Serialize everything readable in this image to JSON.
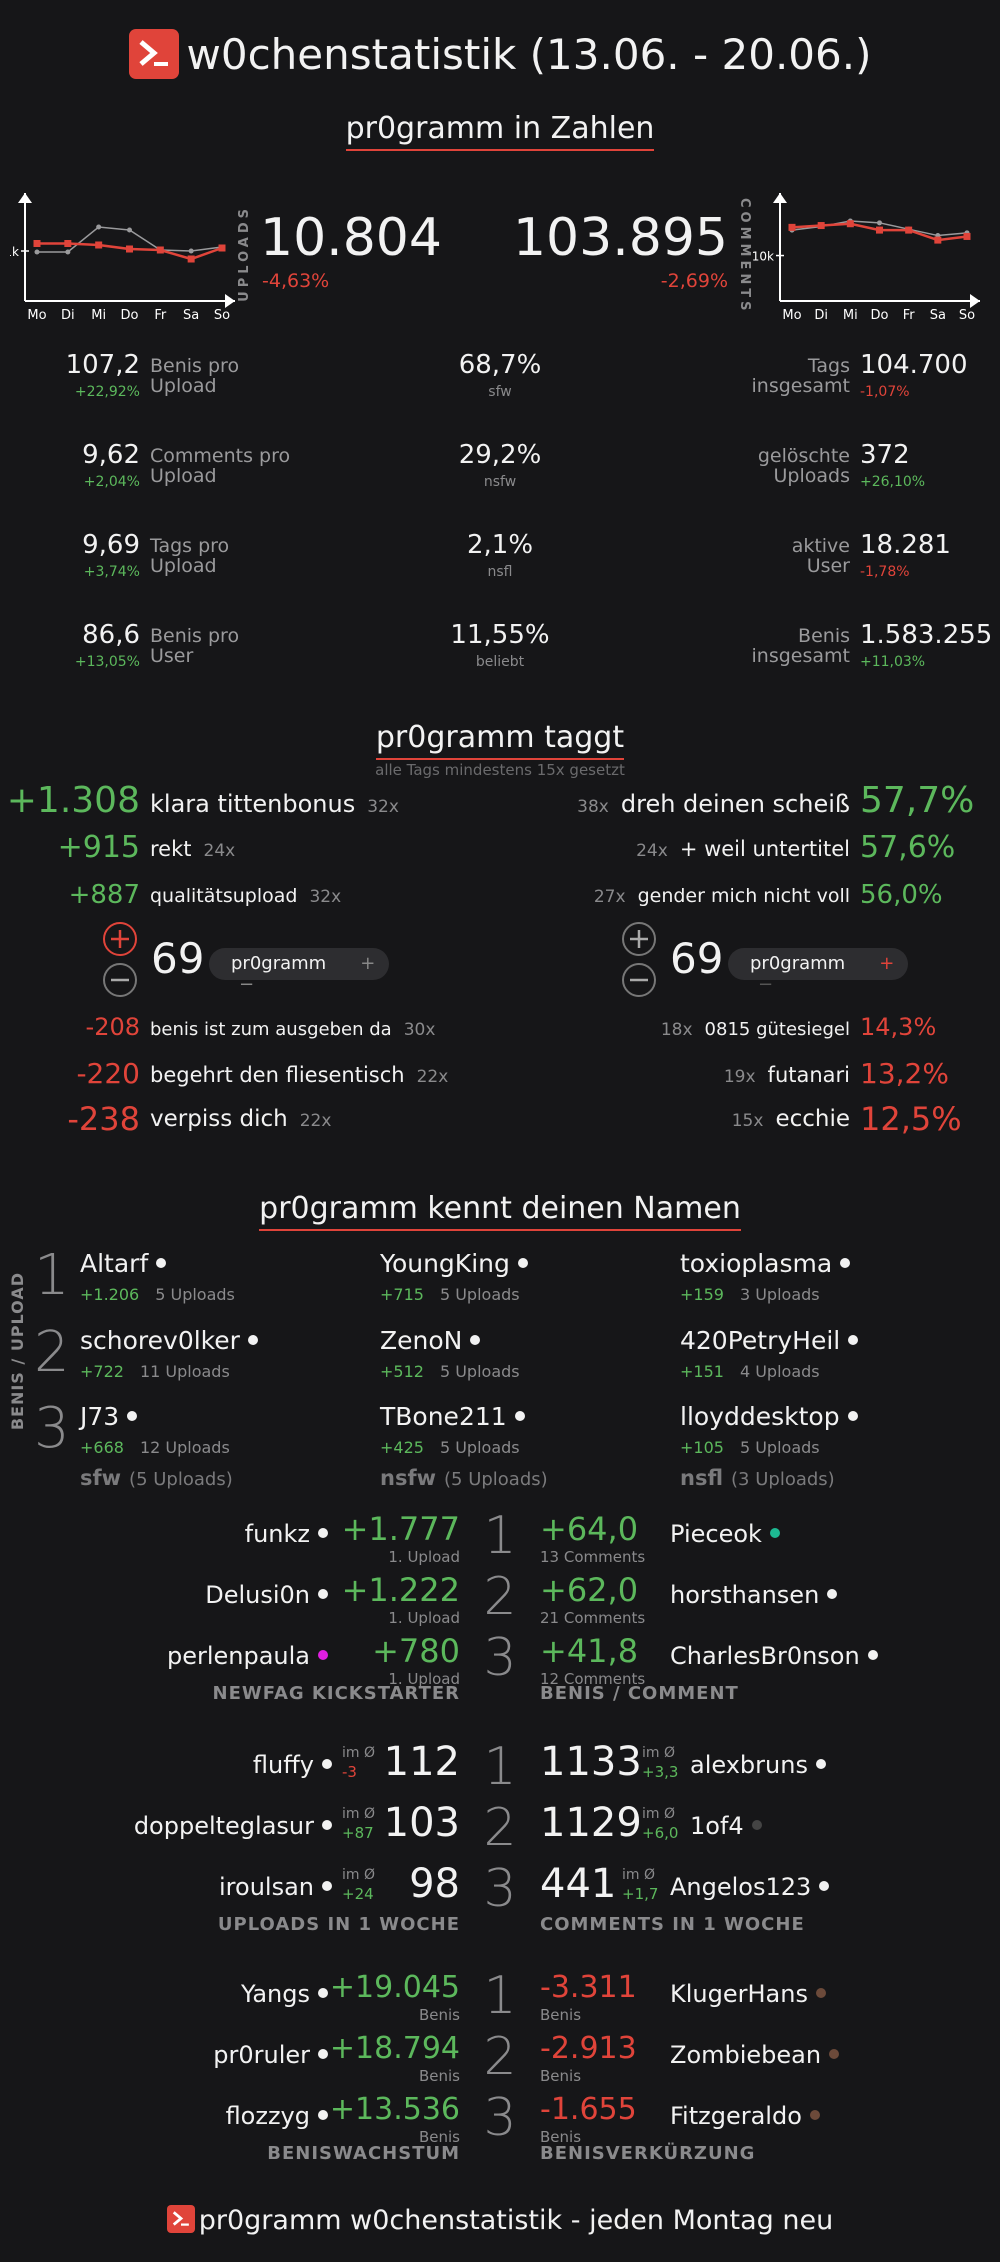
{
  "header": {
    "title": "w0chenstatistik (13.06. - 20.06.)",
    "subtitle": "pr0gramm in Zahlen",
    "logo_icon": "pr0gramm-logo-icon",
    "brand_color": "#e0443a"
  },
  "overview": {
    "uploads": {
      "label": "UPLOADS",
      "value": "10.804",
      "change": "-4,63%"
    },
    "comments": {
      "label": "COMMENTS",
      "value": "103.895",
      "change": "-2,69%"
    },
    "chart_left": {
      "days": [
        "Mo",
        "Di",
        "Mi",
        "Do",
        "Fr",
        "Sa",
        "So"
      ],
      "ytick": "1k",
      "series_this": [
        1.15,
        1.15,
        1.12,
        1.04,
        1.02,
        0.84,
        1.06
      ],
      "series_last": [
        0.98,
        0.98,
        1.48,
        1.42,
        1.02,
        1.0,
        1.08
      ]
    },
    "chart_right": {
      "days": [
        "Mo",
        "Di",
        "Mi",
        "Do",
        "Fr",
        "Sa",
        "So"
      ],
      "ytick": "10k",
      "series_this": [
        16.2,
        16.6,
        17.0,
        15.6,
        15.6,
        13.4,
        14.2
      ],
      "series_last": [
        15.6,
        16.4,
        17.6,
        17.2,
        15.8,
        14.4,
        15.0
      ]
    }
  },
  "stats_left": [
    {
      "value": "107,2",
      "change": "+22,92%",
      "label_1": "Benis pro",
      "label_2": "Upload",
      "up": true
    },
    {
      "value": "9,62",
      "change": "+2,04%",
      "label_1": "Comments pro",
      "label_2": "Upload",
      "up": true
    },
    {
      "value": "9,69",
      "change": "+3,74%",
      "label_1": "Tags pro",
      "label_2": "Upload",
      "up": true
    },
    {
      "value": "86,6",
      "change": "+13,05%",
      "label_1": "Benis pro",
      "label_2": "User",
      "up": true
    }
  ],
  "stats_mid": [
    {
      "value": "68,7%",
      "label": "sfw"
    },
    {
      "value": "29,2%",
      "label": "nsfw"
    },
    {
      "value": "2,1%",
      "label": "nsfl"
    },
    {
      "value": "11,55%",
      "label": "beliebt"
    }
  ],
  "stats_right": [
    {
      "label_1": "Tags",
      "label_2": "insgesamt",
      "value": "104.700",
      "change": "-1,07%",
      "up": false
    },
    {
      "label_1": "gelöschte",
      "label_2": "Uploads",
      "value": "372",
      "change": "+26,10%",
      "up": true
    },
    {
      "label_1": "aktive",
      "label_2": "User",
      "value": "18.281",
      "change": "-1,78%",
      "up": false
    },
    {
      "label_1": "Benis",
      "label_2": "insgesamt",
      "value": "1.583.255",
      "change": "+11,03%",
      "up": true
    }
  ],
  "tags": {
    "title": "pr0gramm taggt",
    "note": "alle Tags mindestens 15x gesetzt",
    "top_benis": [
      {
        "score": "+1.308",
        "tag": "klara tittenbonus",
        "count": "32x"
      },
      {
        "score": "+915",
        "tag": "rekt",
        "count": "24x"
      },
      {
        "score": "+887",
        "tag": "qualitätsupload",
        "count": "32x"
      }
    ],
    "flop_benis": [
      {
        "score": "-208",
        "tag": "benis ist zum ausgeben da",
        "count": "30x"
      },
      {
        "score": "-220",
        "tag": "begehrt den fliesentisch",
        "count": "22x"
      },
      {
        "score": "-238",
        "tag": "verpiss dich",
        "count": "22x"
      }
    ],
    "top_percent": [
      {
        "count": "38x",
        "tag": "dreh deinen scheiß",
        "percent": "57,7%"
      },
      {
        "count": "24x",
        "tag": "+ weil untertitel",
        "percent": "57,6%"
      },
      {
        "count": "27x",
        "tag": "gender mich nicht voll",
        "percent": "56,0%"
      }
    ],
    "flop_percent": [
      {
        "count": "18x",
        "tag": "0815 gütesiegel",
        "percent": "14,3%"
      },
      {
        "count": "19x",
        "tag": "futanari",
        "percent": "13,2%"
      },
      {
        "count": "15x",
        "tag": "ecchie",
        "percent": "12,5%"
      }
    ],
    "vote_widget_left": {
      "score": "69",
      "tag": "pr0gramm",
      "plus": "+",
      "minus": "−"
    },
    "vote_widget_right": {
      "score": "69",
      "tag": "pr0gramm",
      "plus": "+",
      "minus": "−"
    }
  },
  "names": {
    "title": "pr0gramm kennt deinen Namen",
    "side_label": "BENIS / UPLOAD",
    "ranks": [
      "1",
      "2",
      "3"
    ],
    "columns": [
      {
        "footer_main": "sfw",
        "footer_sub": "(5 Uploads)",
        "users": [
          {
            "name": "Altarf",
            "benis": "+1.206",
            "uploads": "5 Uploads"
          },
          {
            "name": "schorev0lker",
            "benis": "+722",
            "uploads": "11 Uploads"
          },
          {
            "name": "J73",
            "benis": "+668",
            "uploads": "12 Uploads"
          }
        ]
      },
      {
        "footer_main": "nsfw",
        "footer_sub": "(5 Uploads)",
        "users": [
          {
            "name": "YoungKing",
            "benis": "+715",
            "uploads": "5 Uploads"
          },
          {
            "name": "ZenoN",
            "benis": "+512",
            "uploads": "5 Uploads"
          },
          {
            "name": "TBone211",
            "benis": "+425",
            "uploads": "5 Uploads"
          }
        ]
      },
      {
        "footer_main": "nsfl",
        "footer_sub": "(3 Uploads)",
        "users": [
          {
            "name": "toxioplasma",
            "benis": "+159",
            "uploads": "3 Uploads"
          },
          {
            "name": "420PetryHeil",
            "benis": "+151",
            "uploads": "4 Uploads"
          },
          {
            "name": "lloyddesktop",
            "benis": "+105",
            "uploads": "5 Uploads"
          }
        ]
      }
    ]
  },
  "newfag": {
    "label": "NEWFAG KICKSTARTER",
    "rows": [
      {
        "name": "funkz",
        "value": "+1.777",
        "sub": "1. Upload",
        "dot": "#f2f2f2"
      },
      {
        "name": "Delusi0n",
        "value": "+1.222",
        "sub": "1. Upload",
        "dot": "#f2f2f2"
      },
      {
        "name": "perlenpaula",
        "value": "+780",
        "sub": "1. Upload",
        "dot": "#e11ee1"
      }
    ]
  },
  "benis_comment": {
    "label": "BENIS / COMMENT",
    "rows": [
      {
        "value": "+64,0",
        "sub": "13 Comments",
        "name": "Pieceok",
        "dot": "#1db992"
      },
      {
        "value": "+62,0",
        "sub": "21 Comments",
        "name": "horsthansen",
        "dot": "#f2f2f2"
      },
      {
        "value": "+41,8",
        "sub": "12 Comments",
        "name": "CharlesBr0nson",
        "dot": "#f2f2f2"
      }
    ]
  },
  "uploads_week": {
    "label": "UPLOADS IN 1 WOCHE",
    "avg_label": "im Ø",
    "rows": [
      {
        "name": "fluffy",
        "avg": "-3",
        "up": false,
        "value": "112",
        "dot": "#f2f2f2"
      },
      {
        "name": "doppelteglasur",
        "avg": "+87",
        "up": true,
        "value": "103",
        "dot": "#f2f2f2"
      },
      {
        "name": "iroulsan",
        "avg": "+24",
        "up": true,
        "value": "98",
        "dot": "#f2f2f2"
      }
    ]
  },
  "comments_week": {
    "label": "COMMENTS IN 1 WOCHE",
    "avg_label": "im Ø",
    "rows": [
      {
        "value": "1133",
        "avg": "+3,3",
        "name": "alexbruns",
        "dot": "#f2f2f2"
      },
      {
        "value": "1129",
        "avg": "+6,0",
        "name": "1of4",
        "dot": "#444444"
      },
      {
        "value": "441",
        "avg": "+1,7",
        "name": "Angelos123",
        "dot": "#f2f2f2"
      }
    ]
  },
  "growth": {
    "label": "BENISWACHSTUM",
    "rows": [
      {
        "name": "Yangs",
        "value": "+19.045",
        "sub": "Benis",
        "dot": "#f2f2f2"
      },
      {
        "name": "pr0ruler",
        "value": "+18.794",
        "sub": "Benis",
        "dot": "#f2f2f2"
      },
      {
        "name": "flozzyg",
        "value": "+13.536",
        "sub": "Benis",
        "dot": "#f2f2f2"
      }
    ]
  },
  "shrink": {
    "label": "BENISVERKÜRZUNG",
    "rows": [
      {
        "value": "-3.311",
        "sub": "Benis",
        "name": "KlugerHans",
        "dot": "#6c4a3a"
      },
      {
        "value": "-2.913",
        "sub": "Benis",
        "name": "Zombiebean",
        "dot": "#6c4a3a"
      },
      {
        "value": "-1.655",
        "sub": "Benis",
        "name": "Fitzgeraldo",
        "dot": "#6c4a3a"
      }
    ]
  },
  "footer": {
    "text": "pr0gramm w0chenstatistik - jeden Montag neu"
  }
}
